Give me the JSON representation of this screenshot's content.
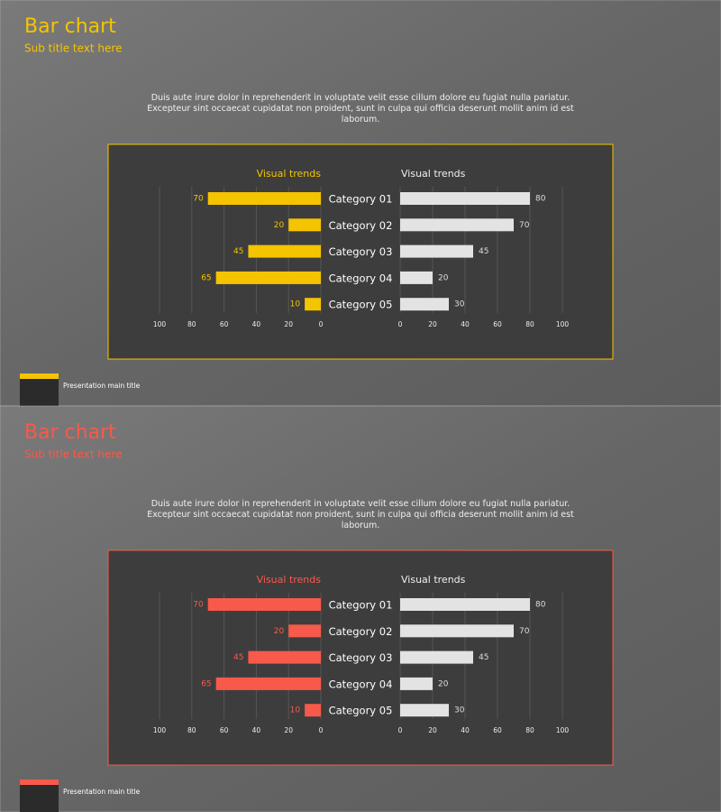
{
  "slides": [
    {
      "title": "Bar chart",
      "subtitle": "Sub title text here",
      "body": "Duis aute irure dolor in reprehenderit in voluptate velit esse cillum dolore eu fugiat nulla pariatur. Excepteur sint occaecat cupidatat non proident, sunt in culpa qui officia deserunt mollit anim id est laborum.",
      "footer": "Presentation main title",
      "accent": "#f5c400"
    },
    {
      "title": "Bar chart",
      "subtitle": "Sub title text here",
      "body": "Duis aute irure dolor in reprehenderit in voluptate velit esse cillum dolore eu fugiat nulla pariatur. Excepteur sint occaecat cupidatat non proident, sunt in culpa qui officia deserunt mollit anim id est laborum.",
      "footer": "Presentation main title",
      "accent": "#f75a4a"
    }
  ],
  "chart_data": [
    {
      "type": "bar",
      "orientation": "horizontal",
      "categories": [
        "Category 01",
        "Category 02",
        "Category 03",
        "Category 04",
        "Category 05"
      ],
      "series": [
        {
          "name": "Visual trends",
          "color": "#f5c400",
          "values": [
            70,
            20,
            45,
            65,
            10
          ]
        },
        {
          "name": "Visual trends",
          "color": "#e3e3e3",
          "values": [
            80,
            70,
            45,
            20,
            30
          ],
          "axis": "x2"
        }
      ],
      "xlim": [
        100,
        0
      ],
      "xticks": [
        100,
        80,
        60,
        40,
        20,
        0
      ],
      "x2lim": [
        0,
        100
      ],
      "x2ticks": [
        0,
        20,
        40,
        60,
        80,
        100
      ],
      "grid": true
    },
    {
      "type": "bar",
      "orientation": "horizontal",
      "categories": [
        "Category 01",
        "Category 02",
        "Category 03",
        "Category 04",
        "Category 05"
      ],
      "series": [
        {
          "name": "Visual trends",
          "color": "#f75a4a",
          "values": [
            70,
            20,
            45,
            65,
            10
          ]
        },
        {
          "name": "Visual trends",
          "color": "#e3e3e3",
          "values": [
            80,
            70,
            45,
            20,
            30
          ],
          "axis": "x2"
        }
      ],
      "xlim": [
        100,
        0
      ],
      "xticks": [
        100,
        80,
        60,
        40,
        20,
        0
      ],
      "x2lim": [
        0,
        100
      ],
      "x2ticks": [
        0,
        20,
        40,
        60,
        80,
        100
      ],
      "grid": true
    }
  ]
}
